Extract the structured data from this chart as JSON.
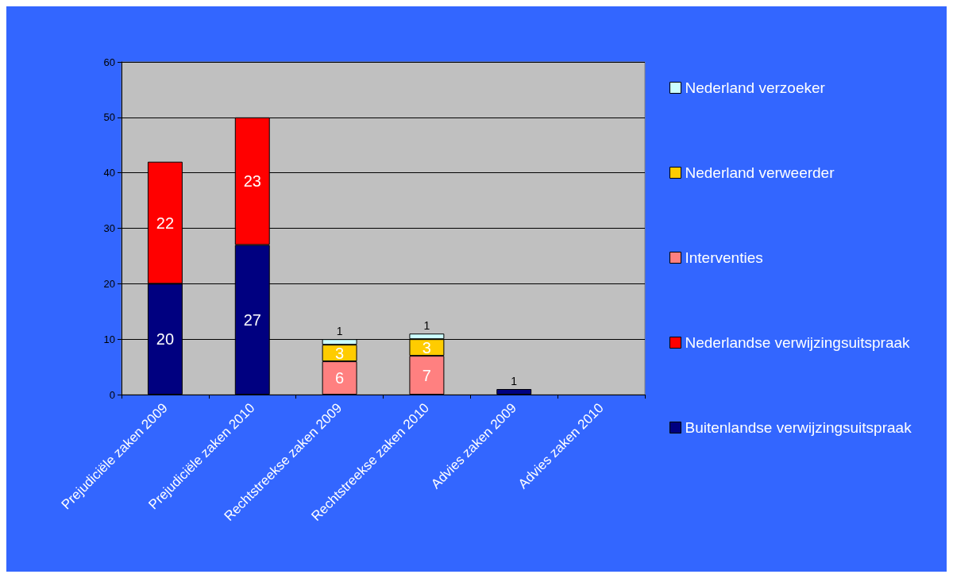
{
  "chart_data": {
    "type": "bar",
    "stacked": true,
    "categories": [
      "Prejudiciële zaken 2009",
      "Prejudiciële zaken 2010",
      "Rechtstreekse zaken 2009",
      "Rechtstreekse zaken 2010",
      "Advies zaken 2009",
      "Advies zaken 2010"
    ],
    "series": [
      {
        "name": "Buitenlandse verwijzingsuitspraak",
        "color": "#000080",
        "values": [
          20,
          27,
          null,
          null,
          1,
          null
        ]
      },
      {
        "name": "Nederlandse verwijzingsuitspraak",
        "color": "#ff0000",
        "values": [
          22,
          23,
          null,
          null,
          null,
          null
        ]
      },
      {
        "name": "Interventies",
        "color": "#ff8080",
        "values": [
          null,
          null,
          6,
          7,
          null,
          null
        ]
      },
      {
        "name": "Nederland verweerder",
        "color": "#ffcc00",
        "values": [
          null,
          null,
          3,
          3,
          null,
          null
        ]
      },
      {
        "name": "Nederland verzoeker",
        "color": "#ccffff",
        "values": [
          null,
          null,
          1,
          1,
          null,
          null
        ]
      }
    ],
    "ylim": [
      0,
      60
    ],
    "yticks": [
      0,
      10,
      20,
      30,
      40,
      50,
      60
    ],
    "grid": "y",
    "legend": "right",
    "data_labels": true
  }
}
